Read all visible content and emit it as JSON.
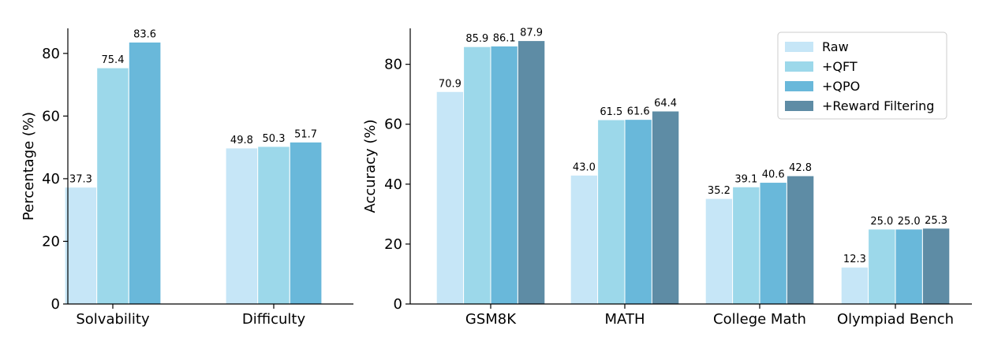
{
  "colors": {
    "Raw": "#c6e6f7",
    "+QFT": "#9cd8ea",
    "+QPO": "#69b8da",
    "+Reward Filtering": "#5e8ca5"
  },
  "chart_data": [
    {
      "type": "bar",
      "title": "",
      "xlabel": "",
      "ylabel": "Percentage (%)",
      "ylim": [
        0,
        88
      ],
      "yticks": [
        0,
        20,
        40,
        60,
        80
      ],
      "grid": false,
      "categories": [
        "Solvability",
        "Difficulty"
      ],
      "series": [
        {
          "name": "Raw",
          "values": [
            37.3,
            49.8
          ]
        },
        {
          "name": "+QFT",
          "values": [
            75.4,
            50.3
          ]
        },
        {
          "name": "+QPO",
          "values": [
            83.6,
            51.7
          ]
        }
      ]
    },
    {
      "type": "bar",
      "title": "",
      "xlabel": "",
      "ylabel": "Accuracy (%)",
      "ylim": [
        0,
        92
      ],
      "yticks": [
        0,
        20,
        40,
        60,
        80
      ],
      "grid": false,
      "legend_position": "top-right",
      "categories": [
        "GSM8K",
        "MATH",
        "College Math",
        "Olympiad Bench"
      ],
      "series": [
        {
          "name": "Raw",
          "values": [
            70.9,
            43.0,
            35.2,
            12.3
          ]
        },
        {
          "name": "+QFT",
          "values": [
            85.9,
            61.5,
            39.1,
            25.0
          ]
        },
        {
          "name": "+QPO",
          "values": [
            86.1,
            61.6,
            40.6,
            25.0
          ]
        },
        {
          "name": "+Reward Filtering",
          "values": [
            87.9,
            64.4,
            42.8,
            25.3
          ]
        }
      ]
    }
  ]
}
